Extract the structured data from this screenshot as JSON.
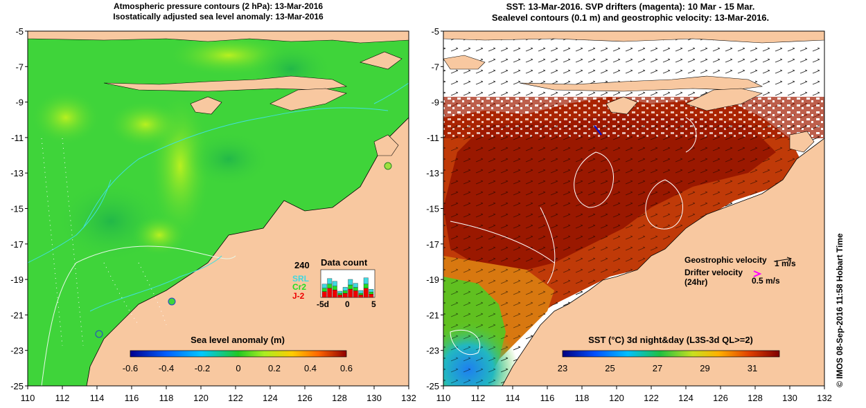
{
  "left_panel": {
    "title_line1": "Atmospheric pressure contours (2 hPa): 13-Mar-2016",
    "title_line2": "Isostatically adjusted sea level anomaly: 13-Mar-2016",
    "colorbar_label": "Sea level anomaly (m)",
    "colorbar_ticks": [
      "-0.6",
      "-0.4",
      "-0.2",
      "0",
      "0.2",
      "0.4",
      "0.6"
    ],
    "legend": {
      "max_count": "240",
      "title": "Data count",
      "series": [
        "SRL",
        "Cr2",
        "J-2"
      ],
      "series_colors": [
        "#3fd8e0",
        "#22dd22",
        "#ee0000"
      ],
      "x_labels": [
        "-5d",
        "0",
        "5"
      ]
    }
  },
  "right_panel": {
    "title_line1": "SST: 13-Mar-2016. SVP drifters (magenta): 10 Mar - 15 Mar.",
    "title_line2": "Sealevel contours (0.1 m) and geostrophic velocity: 13-Mar-2016.",
    "colorbar_label": "SST (°C) 3d night&day (L3S-3d QL>=2)",
    "colorbar_ticks": [
      "23",
      "25",
      "27",
      "29",
      "31"
    ],
    "geostrophic_label": "Geostrophic velocity",
    "geostrophic_scale": "1 m/s",
    "drifter_label_1": "Drifter velocity",
    "drifter_label_2": "(24hr)",
    "drifter_scale": "0.5 m/s"
  },
  "axes": {
    "x_ticks": [
      "110",
      "112",
      "114",
      "116",
      "118",
      "120",
      "122",
      "124",
      "126",
      "128",
      "130",
      "132"
    ],
    "y_ticks": [
      "-5",
      "-7",
      "-9",
      "-11",
      "-13",
      "-15",
      "-17",
      "-19",
      "-21",
      "-23",
      "-25"
    ]
  },
  "credit": "© IMOS 08-Sep-2016 11:58 Hobart Time",
  "colors": {
    "land": "#f8c8a0",
    "ocean_green": "#3fd43a",
    "sst_dark_red": "#a01a00",
    "cloud_white": "#ffffff"
  }
}
